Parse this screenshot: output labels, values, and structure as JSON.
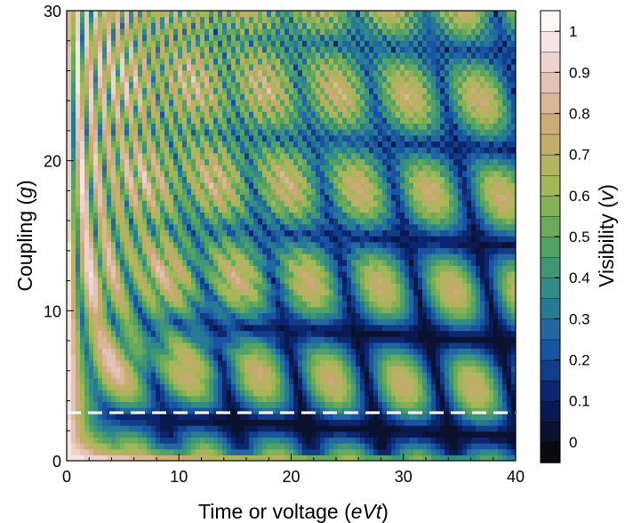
{
  "chart_data": {
    "type": "heatmap",
    "title": "",
    "xlabel": {
      "text": "Time or voltage (",
      "italic": "eVt",
      "tail": ")"
    },
    "ylabel": {
      "text": "Coupling (",
      "italic": "g",
      "tail": ")"
    },
    "xlim": [
      0,
      40
    ],
    "ylim": [
      0,
      30
    ],
    "xticks": [
      0,
      10,
      20,
      30,
      40
    ],
    "yticks": [
      0,
      10,
      20,
      30
    ],
    "colorbar": {
      "label": {
        "text": "Visibility (",
        "italic": "v",
        "tail": ")"
      },
      "range": [
        -0.05,
        1.05
      ],
      "ticks": [
        0,
        0.1,
        0.2,
        0.3,
        0.4,
        0.5,
        0.6,
        0.7,
        0.8,
        0.9,
        1
      ],
      "tick_labels": [
        "0",
        "0.1",
        "0.2",
        "0.3",
        "0.4",
        "0.5",
        "0.6",
        "0.7",
        "0.8",
        "0.9",
        "1"
      ],
      "levels": 22
    },
    "dashed_line": {
      "y": 3.2,
      "color": "#ffffff"
    },
    "colormap": [
      "#0a0a0f",
      "#0a1f66",
      "#1a5aa8",
      "#2f8a8a",
      "#5aa85a",
      "#a8b858",
      "#c8a870",
      "#e8c8c0",
      "#fff8f8"
    ],
    "pattern": "visibility oscillates along eVt with period ~2*pi/g-dependent fringes; bright ridge near small eVt, checker of ellipses elsewhere"
  }
}
